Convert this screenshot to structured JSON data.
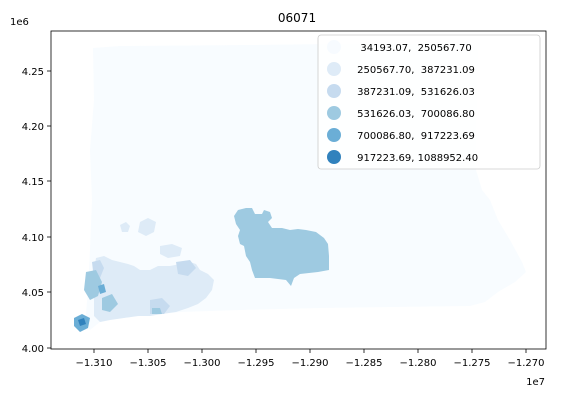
{
  "title": "06071",
  "colors": {
    "class_0": "#f7fbff",
    "class_1": "#deebf7",
    "class_2": "#c6dbef",
    "class_3": "#9ecae1",
    "class_4": "#6baed6",
    "class_5": "#3182bd",
    "background": "#ffffff",
    "axis": "#000000"
  },
  "axes": {
    "x_ticks": [
      "−1.310",
      "−1.305",
      "−1.300",
      "−1.295",
      "−1.290",
      "−1.285",
      "−1.280",
      "−1.275",
      "−1.270"
    ],
    "x_scale": "1e7",
    "y_ticks": [
      "4.00",
      "4.05",
      "4.10",
      "4.15",
      "4.20",
      "4.25"
    ],
    "y_scale": "1e6"
  },
  "legend": {
    "placement": "top-right",
    "entries": [
      {
        "label": "  34193.07,  250567.70"
      },
      {
        "label": " 250567.70,  387231.09"
      },
      {
        "label": " 387231.09,  531626.03"
      },
      {
        "label": " 531626.03,  700086.80"
      },
      {
        "label": " 700086.80,  917223.69"
      },
      {
        "label": " 917223.69, 1088952.40"
      }
    ]
  }
}
